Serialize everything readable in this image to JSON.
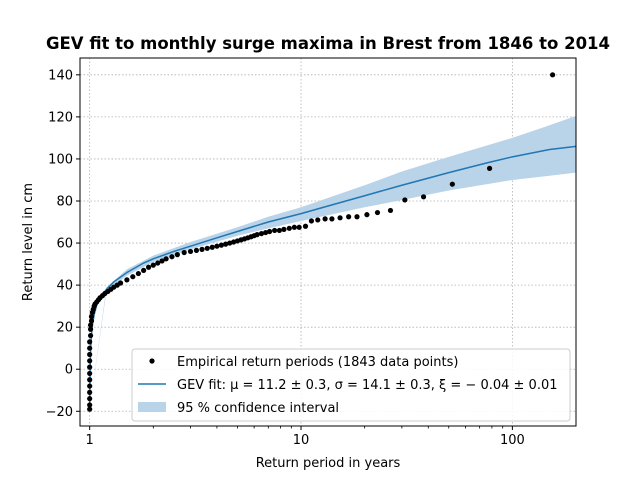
{
  "chart_data": {
    "type": "scatter",
    "title": "GEV fit to monthly surge maxima in Brest from 1846 to 2014",
    "xlabel": "Return period in years",
    "ylabel": "Return level in cm",
    "x_scale": "log",
    "xlim": [
      0.9,
      200
    ],
    "ylim": [
      -27,
      148
    ],
    "x_ticks": [
      {
        "value": 1,
        "label": "1"
      },
      {
        "value": 10,
        "label": "10"
      },
      {
        "value": 100,
        "label": "100"
      }
    ],
    "y_ticks": [
      {
        "value": -20,
        "label": "−20"
      },
      {
        "value": 0,
        "label": "0"
      },
      {
        "value": 20,
        "label": "20"
      },
      {
        "value": 40,
        "label": "40"
      },
      {
        "value": 60,
        "label": "60"
      },
      {
        "value": 80,
        "label": "80"
      },
      {
        "value": 100,
        "label": "100"
      },
      {
        "value": 120,
        "label": "120"
      },
      {
        "value": 140,
        "label": "140"
      }
    ],
    "grid": true,
    "legend_position": "lower-right",
    "legend": [
      {
        "key": "empirical",
        "label": "Empirical return periods (1843 data points)"
      },
      {
        "key": "fit",
        "label": "GEV fit: μ = 11.2 ± 0.3, σ = 14.1 ± 0.3, ξ = − 0.04 ± 0.01"
      },
      {
        "key": "ci",
        "label": "95 % confidence interval"
      }
    ],
    "colors": {
      "empirical": "#000000",
      "fit": "#1f77b4",
      "ci": "#b9d3e8",
      "grid": "#b0b0b0"
    },
    "fit_curve": {
      "x": [
        1.0,
        1.005,
        1.01,
        1.02,
        1.03,
        1.05,
        1.08,
        1.12,
        1.2,
        1.3,
        1.5,
        1.8,
        2.0,
        2.5,
        3.0,
        4.0,
        5.0,
        7.0,
        10.0,
        15.0,
        20.0,
        30.0,
        50.0,
        75.0,
        100.0,
        150.0,
        200.0
      ],
      "y": [
        -19,
        0.5,
        9.0,
        16.5,
        21.0,
        26.0,
        30.5,
        34.0,
        38.0,
        41.5,
        46.0,
        50.5,
        52.5,
        56.0,
        58.5,
        62.5,
        65.5,
        70.0,
        74.0,
        79.0,
        82.5,
        87.5,
        93.5,
        98.0,
        101.0,
        104.5,
        106.0
      ]
    },
    "ci_band": {
      "x": [
        1.0,
        1.2,
        1.5,
        2.0,
        3.0,
        5.0,
        7.0,
        10.0,
        20.0,
        30.0,
        50.0,
        100.0,
        150.0,
        200.0
      ],
      "lower": [
        -19,
        37.0,
        44.5,
        51.0,
        57.0,
        63.5,
        67.0,
        70.5,
        77.0,
        80.5,
        85.0,
        90.0,
        92.0,
        93.5
      ],
      "upper": [
        -19,
        39.0,
        47.5,
        54.0,
        60.5,
        67.5,
        72.5,
        77.0,
        87.5,
        94.0,
        101.0,
        110.0,
        116.0,
        120.5
      ]
    },
    "empirical": {
      "x": [
        1.0,
        1.0,
        1.0,
        1.0,
        1.0,
        1.0,
        1.0,
        1.0,
        1.0,
        1.0,
        1.0,
        1.0,
        1.01,
        1.01,
        1.01,
        1.02,
        1.02,
        1.03,
        1.04,
        1.05,
        1.06,
        1.08,
        1.1,
        1.12,
        1.15,
        1.18,
        1.22,
        1.26,
        1.3,
        1.35,
        1.4,
        1.5,
        1.6,
        1.7,
        1.8,
        1.9,
        2.0,
        2.1,
        2.2,
        2.3,
        2.45,
        2.6,
        2.8,
        3.0,
        3.2,
        3.4,
        3.6,
        3.8,
        4.0,
        4.2,
        4.4,
        4.6,
        4.8,
        5.0,
        5.2,
        5.4,
        5.6,
        5.8,
        6.0,
        6.2,
        6.5,
        6.8,
        7.1,
        7.5,
        7.9,
        8.3,
        8.8,
        9.3,
        9.8,
        10.5,
        11.2,
        12.0,
        13.0,
        14.0,
        15.3,
        16.8,
        18.4,
        20.5,
        23.0,
        26.5,
        31.0,
        38.0,
        52.0,
        78.0,
        155.0
      ],
      "y": [
        -19,
        -17,
        -14,
        -11,
        -8,
        -5,
        -2,
        1,
        4,
        7,
        10,
        13,
        16,
        19,
        21,
        23,
        25,
        27,
        28.5,
        30,
        31,
        32,
        33,
        34,
        35,
        36,
        37,
        38,
        39,
        40,
        41,
        42.5,
        44,
        45.5,
        47,
        48.5,
        49.5,
        50.5,
        51.5,
        52.5,
        53.5,
        54.5,
        55.5,
        56,
        56.5,
        57,
        57.5,
        58,
        58.5,
        59,
        59.5,
        60,
        60.5,
        61,
        61.5,
        62,
        62.5,
        63,
        63.5,
        64,
        64.5,
        65,
        65.5,
        66,
        66,
        66.5,
        67,
        67.5,
        67.5,
        68,
        70.5,
        71,
        71.5,
        71.5,
        72,
        72.5,
        72.5,
        73.5,
        74.5,
        75.5,
        80.5,
        82,
        88,
        95.5,
        140
      ]
    }
  }
}
